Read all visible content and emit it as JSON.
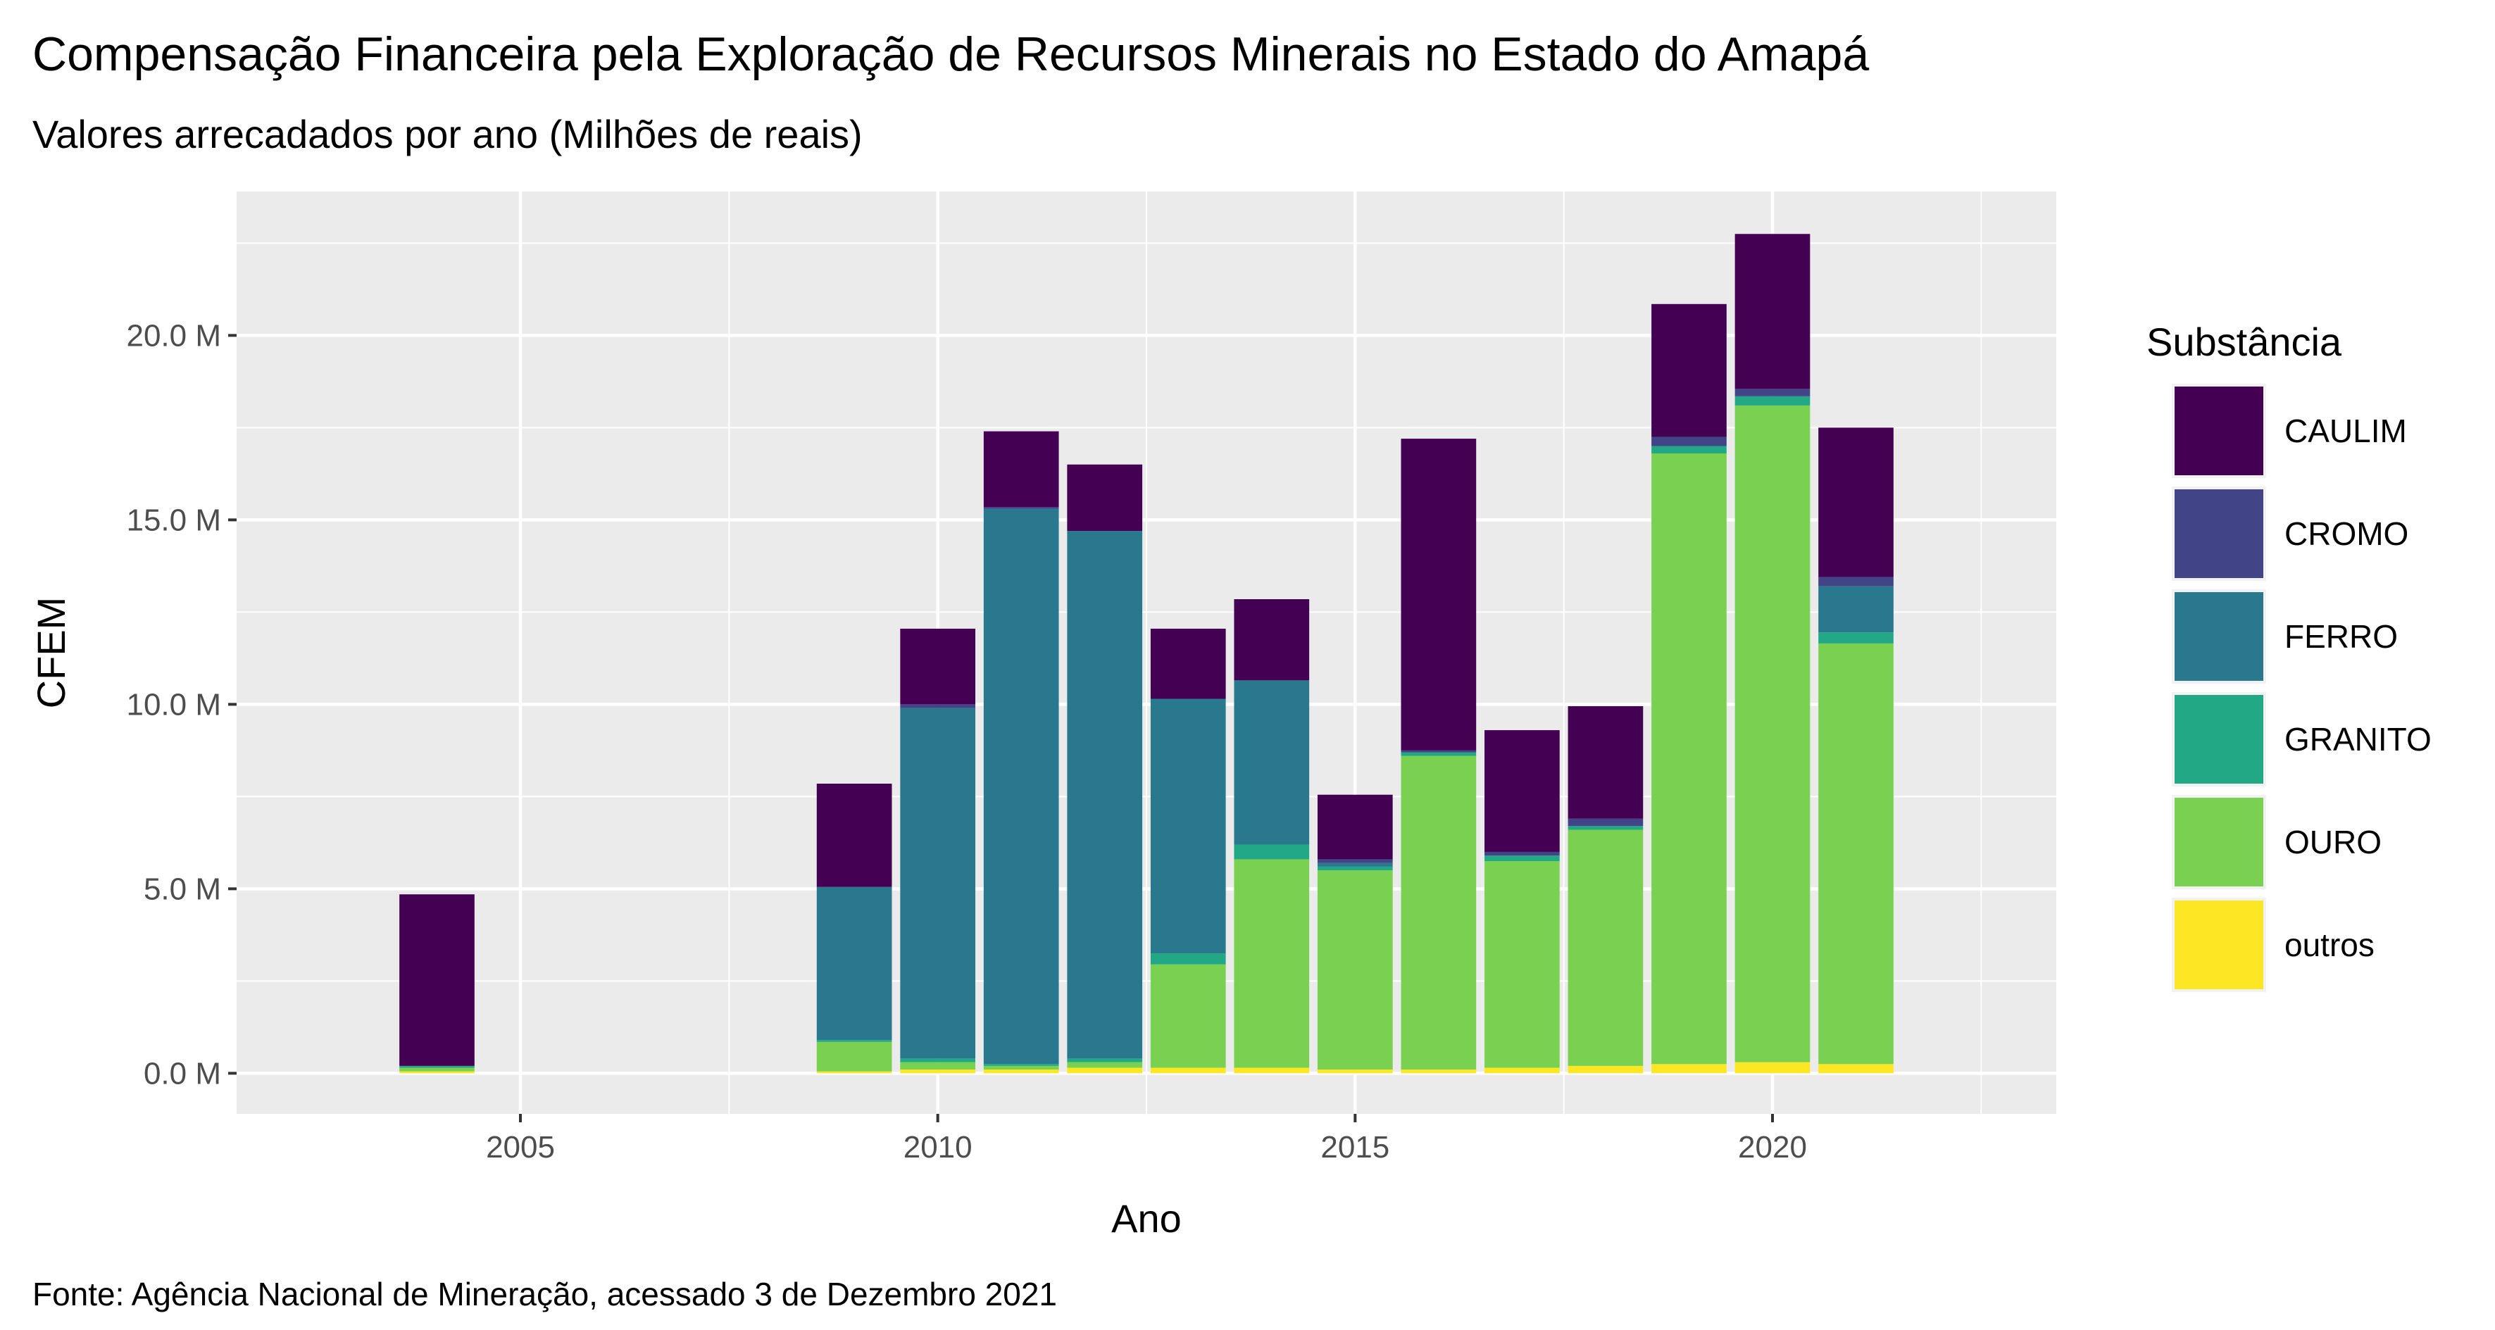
{
  "chart_data": {
    "type": "bar",
    "stacked": true,
    "title": "Compensação Financeira pela Exploração de Recursos Minerais no Estado do Amapá",
    "subtitle": "Valores arrecadados por ano (Milhões de reais)",
    "xlabel": "Ano",
    "ylabel": "CFEM",
    "caption": "Fonte: Agência Nacional de Mineração, acessado 3 de Dezembro 2021",
    "legend_title": "Substância",
    "legend_position": "right",
    "grid": true,
    "x_ticks": [
      2005,
      2010,
      2015,
      2020
    ],
    "x_tick_labels": [
      "2005",
      "2010",
      "2015",
      "2020"
    ],
    "y_ticks": [
      0,
      5,
      10,
      15,
      20
    ],
    "y_tick_labels": [
      "0.0 M",
      "5.0 M",
      "10.0 M",
      "15.0 M",
      "20.0 M"
    ],
    "xlim": [
      2001.6,
      2023.4
    ],
    "ylim": [
      -1.1,
      23.9
    ],
    "units": "milhões de reais",
    "categories": [
      2004,
      2009,
      2010,
      2011,
      2012,
      2013,
      2014,
      2015,
      2016,
      2017,
      2018,
      2019,
      2020,
      2021
    ],
    "series": [
      {
        "name": "outros",
        "color": "#FDE725",
        "values": [
          0.05,
          0.05,
          0.1,
          0.1,
          0.15,
          0.15,
          0.15,
          0.1,
          0.1,
          0.15,
          0.2,
          0.25,
          0.3,
          0.25
        ]
      },
      {
        "name": "OURO",
        "color": "#7AD151",
        "values": [
          0.1,
          0.8,
          0.2,
          0.1,
          0.15,
          2.8,
          5.65,
          5.4,
          8.5,
          5.6,
          6.4,
          16.55,
          17.8,
          11.4
        ]
      },
      {
        "name": "GRANITO",
        "color": "#22A884",
        "values": [
          0.05,
          0.05,
          0.1,
          0.05,
          0.1,
          0.3,
          0.4,
          0.1,
          0.1,
          0.15,
          0.1,
          0.2,
          0.25,
          0.3
        ]
      },
      {
        "name": "FERRO",
        "color": "#2A788E",
        "values": [
          0,
          4.15,
          9.5,
          15.05,
          14.3,
          6.9,
          4.45,
          0.1,
          0,
          0,
          0,
          0,
          0,
          1.25
        ]
      },
      {
        "name": "CROMO",
        "color": "#414487",
        "values": [
          0,
          0,
          0.1,
          0.05,
          0,
          0,
          0,
          0.1,
          0.05,
          0.1,
          0.2,
          0.25,
          0.2,
          0.25
        ]
      },
      {
        "name": "CAULIM",
        "color": "#440154",
        "values": [
          4.65,
          2.8,
          2.05,
          2.05,
          1.8,
          1.9,
          2.2,
          1.75,
          8.45,
          3.3,
          3.05,
          3.6,
          4.2,
          4.05
        ]
      }
    ],
    "legend_order": [
      "CAULIM",
      "CROMO",
      "FERRO",
      "GRANITO",
      "OURO",
      "outros"
    ]
  }
}
